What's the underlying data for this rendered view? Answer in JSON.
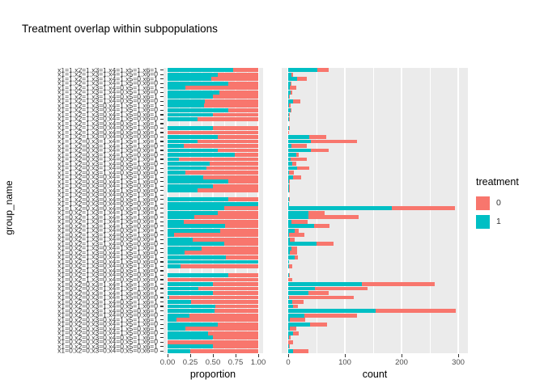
{
  "title": "Treatment overlap within subpopulations",
  "y_axis_title": "group_name",
  "legend": {
    "title": "treatment",
    "items": [
      {
        "label": "0",
        "color": "#F8766D"
      },
      {
        "label": "1",
        "color": "#00BFC4"
      }
    ]
  },
  "chart_data": {
    "type": "bar",
    "orientation": "horizontal",
    "stacked": true,
    "title": "Treatment overlap within subpopulations",
    "ylabel": "group_name",
    "grid": "on",
    "panel_background": "#EBEBEB",
    "colors": {
      "treatment0": "#F8766D",
      "treatment1": "#00BFC4"
    },
    "facets": [
      {
        "label": "proportion",
        "xlim": [
          0,
          1
        ],
        "ticks": [
          {
            "v": 0,
            "label": "0.00"
          },
          {
            "v": 0.25,
            "label": "0.25"
          },
          {
            "v": 0.5,
            "label": "0.50"
          },
          {
            "v": 0.75,
            "label": "0.75"
          },
          {
            "v": 1.0,
            "label": "1.00"
          }
        ],
        "minor": [
          0.125,
          0.375,
          0.625,
          0.875
        ]
      },
      {
        "label": "count",
        "xlim": [
          0,
          300
        ],
        "ticks": [
          {
            "v": 0,
            "label": "0"
          },
          {
            "v": 100,
            "label": "100"
          },
          {
            "v": 200,
            "label": "200"
          },
          {
            "v": 300,
            "label": "300"
          }
        ],
        "minor": [
          50,
          150,
          250
        ]
      }
    ],
    "rows": [
      {
        "group": "x1=1,x2=1,x3=1,x4=1,x5=1,x6=1",
        "n0": 20,
        "n1": 52
      },
      {
        "group": "x1=1,x2=1,x3=1,x4=1,x5=1,x6=0",
        "n0": 4,
        "n1": 5
      },
      {
        "group": "x1=1,x2=1,x3=1,x4=1,x5=0,x6=1",
        "n0": 17,
        "n1": 16
      },
      {
        "group": "x1=1,x2=1,x3=1,x4=1,x5=0,x6=0",
        "n0": 2,
        "n1": 4
      },
      {
        "group": "x1=1,x2=1,x3=1,x4=0,x5=1,x6=1",
        "n0": 12,
        "n1": 3
      },
      {
        "group": "x1=1,x2=1,x3=1,x4=0,x5=1,x6=0",
        "n0": 3,
        "n1": 4
      },
      {
        "group": "x1=1,x2=1,x3=1,x4=0,x5=0,x6=1",
        "n0": 1,
        "n1": 1
      },
      {
        "group": "x1=1,x2=1,x3=1,x4=0,x5=0,x6=0",
        "n0": 13,
        "n1": 9
      },
      {
        "group": "x1=1,x2=1,x3=0,x4=1,x5=1,x6=1",
        "n0": 3,
        "n1": 2
      },
      {
        "group": "x1=1,x2=1,x3=0,x4=1,x5=1,x6=0",
        "n0": 2,
        "n1": 4
      },
      {
        "group": "x1=1,x2=1,x3=0,x4=1,x5=0,x6=1",
        "n0": 1,
        "n1": 1
      },
      {
        "group": "x1=1,x2=1,x3=0,x4=1,x5=0,x6=0",
        "n0": 2,
        "n1": 1
      },
      {
        "group": "x1=1,x2=1,x3=0,x4=0,x5=1,x6=1",
        "n0": 0,
        "n1": 0
      },
      {
        "group": "x1=1,x2=1,x3=0,x4=0,x5=1,x6=0",
        "n0": 1,
        "n1": 1
      },
      {
        "group": "x1=1,x2=1,x3=0,x4=0,x5=0,x6=1",
        "n0": 1,
        "n1": 0
      },
      {
        "group": "x1=1,x2=1,x3=0,x4=0,x5=0,x6=0",
        "n0": 30,
        "n1": 37
      },
      {
        "group": "x1=1,x2=0,x3=1,x4=1,x5=1,x6=1",
        "n0": 82,
        "n1": 40
      },
      {
        "group": "x1=1,x2=0,x3=1,x4=1,x5=1,x6=0",
        "n0": 27,
        "n1": 6
      },
      {
        "group": "x1=1,x2=0,x3=1,x4=1,x5=0,x6=1",
        "n0": 32,
        "n1": 40
      },
      {
        "group": "x1=1,x2=0,x3=1,x4=1,x5=0,x6=0",
        "n0": 5,
        "n1": 14
      },
      {
        "group": "x1=1,x2=0,x3=1,x4=0,x5=1,x6=1",
        "n0": 29,
        "n1": 4
      },
      {
        "group": "x1=1,x2=0,x3=1,x4=0,x5=1,x6=0",
        "n0": 8,
        "n1": 7
      },
      {
        "group": "x1=1,x2=0,x3=1,x4=0,x5=0,x6=1",
        "n0": 21,
        "n1": 16
      },
      {
        "group": "x1=1,x2=0,x3=1,x4=0,x5=0,x6=0",
        "n0": 8,
        "n1": 2
      },
      {
        "group": "x1=1,x2=0,x3=0,x4=1,x5=1,x6=1",
        "n0": 14,
        "n1": 9
      },
      {
        "group": "x1=1,x2=0,x3=0,x4=1,x5=1,x6=0",
        "n0": 1,
        "n1": 2
      },
      {
        "group": "x1=1,x2=0,x3=0,x4=1,x5=0,x6=1",
        "n0": 1,
        "n1": 1
      },
      {
        "group": "x1=1,x2=0,x3=0,x4=1,x5=0,x6=0",
        "n0": 2,
        "n1": 1
      },
      {
        "group": "x1=1,x2=0,x3=0,x4=0,x5=1,x6=1",
        "n0": 0,
        "n1": 0
      },
      {
        "group": "x1=1,x2=0,x3=0,x4=0,x5=1,x6=0",
        "n0": 1,
        "n1": 2
      },
      {
        "group": "x1=1,x2=0,x3=0,x4=0,x5=0,x6=1",
        "n0": 0,
        "n1": 1
      },
      {
        "group": "x1=1,x2=0,x3=0,x4=0,x5=0,x6=0",
        "n0": 111,
        "n1": 183
      },
      {
        "group": "x1=0,x2=1,x3=1,x4=1,x5=1,x6=1",
        "n0": 29,
        "n1": 36
      },
      {
        "group": "x1=0,x2=1,x3=1,x4=1,x5=1,x6=0",
        "n0": 88,
        "n1": 36
      },
      {
        "group": "x1=0,x2=1,x3=1,x4=1,x5=0,x6=1",
        "n0": 28,
        "n1": 6
      },
      {
        "group": "x1=0,x2=1,x3=1,x4=1,x5=0,x6=0",
        "n0": 27,
        "n1": 46
      },
      {
        "group": "x1=0,x2=1,x3=1,x4=0,x5=1,x6=1",
        "n0": 8,
        "n1": 11
      },
      {
        "group": "x1=0,x2=1,x3=1,x4=0,x5=1,x6=0",
        "n0": 27,
        "n1": 2
      },
      {
        "group": "x1=0,x2=1,x3=1,x4=0,x5=0,x6=1",
        "n0": 8,
        "n1": 3
      },
      {
        "group": "x1=0,x2=1,x3=1,x4=0,x5=0,x6=0",
        "n0": 30,
        "n1": 50
      },
      {
        "group": "x1=0,x2=1,x3=0,x4=1,x5=1,x6=1",
        "n0": 10,
        "n1": 6
      },
      {
        "group": "x1=0,x2=1,x3=0,x4=1,x5=1,x6=0",
        "n0": 13,
        "n1": 3
      },
      {
        "group": "x1=0,x2=1,x3=0,x4=1,x5=0,x6=1",
        "n0": 6,
        "n1": 11
      },
      {
        "group": "x1=0,x2=1,x3=0,x4=1,x5=0,x6=0",
        "n0": 0,
        "n1": 2
      },
      {
        "group": "x1=0,x2=1,x3=0,x4=0,x5=1,x6=1",
        "n0": 6,
        "n1": 1
      },
      {
        "group": "x1=0,x2=1,x3=0,x4=0,x5=1,x6=0",
        "n0": 0,
        "n1": 0
      },
      {
        "group": "x1=0,x2=1,x3=0,x4=0,x5=0,x6=1",
        "n0": 1,
        "n1": 2
      },
      {
        "group": "x1=0,x2=1,x3=0,x4=0,x5=0,x6=0",
        "n0": 7,
        "n1": 0
      },
      {
        "group": "x1=0,x2=0,x3=1,x4=1,x5=1,x6=1",
        "n0": 128,
        "n1": 130
      },
      {
        "group": "x1=0,x2=0,x3=1,x4=1,x5=1,x6=0",
        "n0": 93,
        "n1": 47
      },
      {
        "group": "x1=0,x2=0,x3=1,x4=1,x5=0,x6=1",
        "n0": 36,
        "n1": 36
      },
      {
        "group": "x1=0,x2=0,x3=1,x4=1,x5=0,x6=0",
        "n0": 114,
        "n1": 2
      },
      {
        "group": "x1=0,x2=0,x3=1,x4=0,x5=1,x6=1",
        "n0": 20,
        "n1": 7
      },
      {
        "group": "x1=0,x2=0,x3=1,x4=0,x5=1,x6=0",
        "n0": 8,
        "n1": 9
      },
      {
        "group": "x1=0,x2=0,x3=1,x4=0,x5=0,x6=1",
        "n0": 142,
        "n1": 154
      },
      {
        "group": "x1=0,x2=0,x3=1,x4=0,x5=0,x6=0",
        "n0": 92,
        "n1": 29
      },
      {
        "group": "x1=0,x2=0,x3=0,x4=1,x5=1,x6=1",
        "n0": 27,
        "n1": 3
      },
      {
        "group": "x1=0,x2=0,x3=0,x4=1,x5=1,x6=0",
        "n0": 31,
        "n1": 38
      },
      {
        "group": "x1=0,x2=0,x3=0,x4=1,x5=0,x6=1",
        "n0": 12,
        "n1": 3
      },
      {
        "group": "x1=0,x2=0,x3=0,x4=1,x5=0,x6=0",
        "n0": 10,
        "n1": 8
      },
      {
        "group": "x1=0,x2=0,x3=0,x4=0,x5=1,x6=1",
        "n0": 2,
        "n1": 2
      },
      {
        "group": "x1=0,x2=0,x3=0,x4=0,x5=1,x6=0",
        "n0": 9,
        "n1": 0
      },
      {
        "group": "x1=0,x2=0,x3=0,x4=0,x5=0,x6=1",
        "n0": 1,
        "n1": 1
      },
      {
        "group": "x1=0,x2=0,x3=0,x4=0,x5=0,x6=0",
        "n0": 27,
        "n1": 9
      }
    ]
  },
  "axis_titles": {
    "proportion": "proportion",
    "count": "count"
  }
}
